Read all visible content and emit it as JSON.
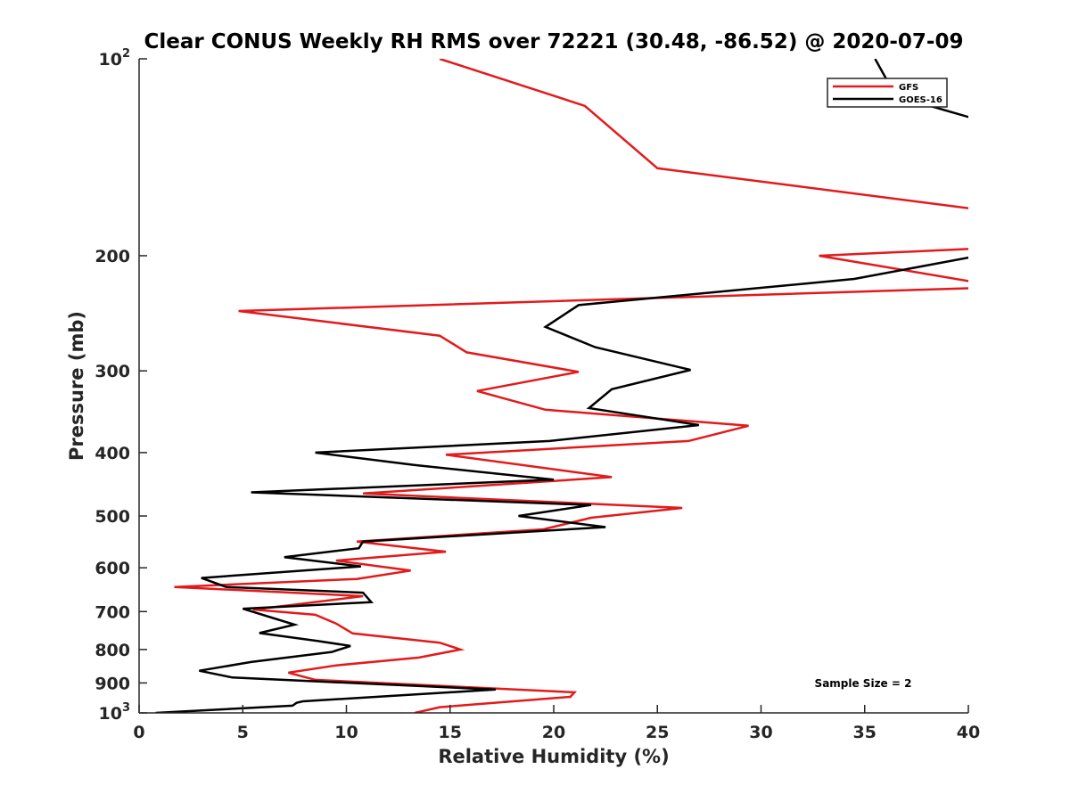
{
  "chart_data": {
    "type": "line",
    "title": "Clear CONUS Weekly RH RMS over 72221 (30.48, -86.52) @ 2020-07-09",
    "xlabel": "Relative Humidity (%)",
    "ylabel": "Pressure (mb)",
    "xlim": [
      0,
      40
    ],
    "ylim": [
      100,
      1000
    ],
    "y_scale": "log",
    "y_reversed": true,
    "grid": false,
    "legend_position": "top-right",
    "x_ticks": [
      "0",
      "5",
      "10",
      "15",
      "20",
      "25",
      "30",
      "35",
      "40"
    ],
    "y_ticks": [
      {
        "value": 100,
        "base": "10",
        "exp": "2"
      },
      {
        "value": 200,
        "label": "200"
      },
      {
        "value": 300,
        "label": "300"
      },
      {
        "value": 400,
        "label": "400"
      },
      {
        "value": 500,
        "label": "500"
      },
      {
        "value": 600,
        "label": "600"
      },
      {
        "value": 700,
        "label": "700"
      },
      {
        "value": 800,
        "label": "800"
      },
      {
        "value": 900,
        "label": "900"
      },
      {
        "value": 1000,
        "base": "10",
        "exp": "3"
      }
    ],
    "annotation": "Sample Size = 2",
    "series": [
      {
        "name": "GFS",
        "color": "#e31a1c",
        "points": [
          [
            14.5,
            100
          ],
          [
            21.5,
            118
          ],
          [
            25.0,
            147
          ],
          [
            40.5,
            170
          ],
          null,
          [
            40.5,
            195
          ],
          [
            32.8,
            200
          ],
          [
            40.5,
            220
          ],
          [
            40.5,
            224
          ],
          [
            4.8,
            243
          ],
          [
            14.5,
            265
          ],
          [
            15.8,
            281
          ],
          [
            21.2,
            301
          ],
          [
            16.3,
            322
          ],
          [
            19.6,
            344
          ],
          [
            29.4,
            364
          ],
          [
            26.5,
            384
          ],
          [
            14.8,
            403
          ],
          [
            22.8,
            436
          ],
          [
            10.8,
            462
          ],
          [
            26.2,
            486
          ],
          [
            21.8,
            503
          ],
          [
            19.5,
            524
          ],
          [
            10.5,
            547
          ],
          [
            14.8,
            567
          ],
          [
            9.5,
            585
          ],
          [
            13.1,
            606
          ],
          [
            10.5,
            624
          ],
          [
            1.7,
            642
          ],
          [
            10.8,
            663
          ],
          [
            7.2,
            685
          ],
          [
            5.5,
            695
          ],
          [
            8.5,
            708
          ],
          [
            9.5,
            730
          ],
          [
            10.3,
            756
          ],
          [
            14.5,
            781
          ],
          [
            15.5,
            800
          ],
          [
            13.5,
            823
          ],
          [
            9.5,
            846
          ],
          [
            7.2,
            868
          ],
          [
            8.5,
            890
          ],
          [
            21.0,
            930
          ],
          [
            20.8,
            945
          ],
          [
            14.5,
            980
          ],
          [
            13.3,
            1000
          ]
        ]
      },
      {
        "name": "GOES-16",
        "color": "#000000",
        "points": [
          [
            35.5,
            100
          ],
          [
            36.5,
            114
          ],
          [
            40.5,
            124
          ],
          null,
          [
            40.5,
            200
          ],
          [
            34.5,
            217
          ],
          [
            21.2,
            238
          ],
          [
            19.6,
            257
          ],
          [
            22.0,
            276
          ],
          [
            26.6,
            299
          ],
          [
            22.8,
            320
          ],
          [
            21.7,
            342
          ],
          [
            27.0,
            363
          ],
          [
            19.8,
            384
          ],
          [
            8.5,
            400
          ],
          [
            13.3,
            418
          ],
          [
            20.0,
            440
          ],
          [
            5.4,
            460
          ],
          [
            21.8,
            481
          ],
          [
            18.3,
            500
          ],
          [
            22.5,
            520
          ],
          [
            10.8,
            547
          ],
          [
            10.6,
            560
          ],
          [
            7.0,
            578
          ],
          [
            10.7,
            597
          ],
          [
            3.0,
            622
          ],
          [
            4.2,
            642
          ],
          [
            10.8,
            655
          ],
          [
            11.2,
            677
          ],
          [
            5.0,
            693
          ],
          [
            7.5,
            733
          ],
          [
            5.8,
            755
          ],
          [
            8.6,
            776
          ],
          [
            10.2,
            790
          ],
          [
            9.3,
            807
          ],
          [
            5.4,
            836
          ],
          [
            2.9,
            862
          ],
          [
            4.5,
            883
          ],
          [
            17.2,
            921
          ],
          [
            7.9,
            960
          ],
          [
            7.6,
            965
          ],
          [
            7.4,
            975
          ],
          [
            0.8,
            1000
          ]
        ]
      }
    ]
  }
}
